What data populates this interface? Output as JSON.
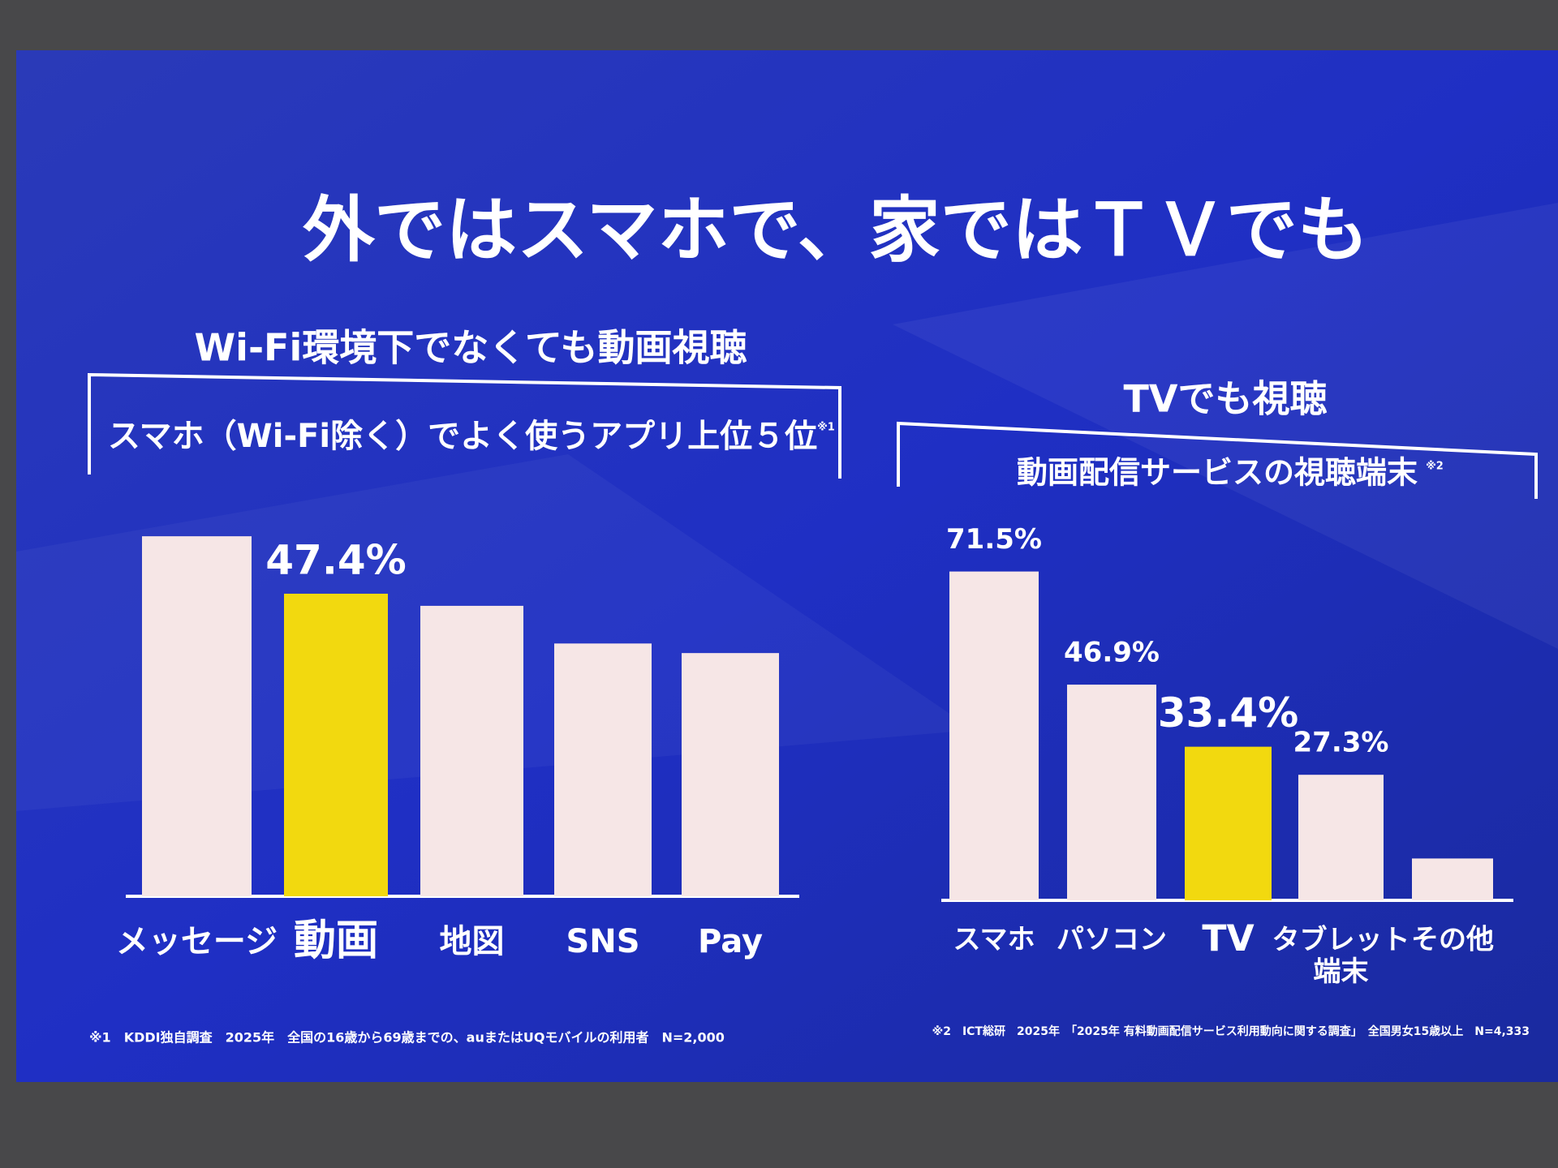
{
  "title": "外ではスマホで、家ではＴＶでも",
  "chart_data": [
    {
      "type": "bar",
      "heading": "Wi-Fi環境下でなくても動画視聴",
      "title": "スマホ（Wi-Fi除く）でよく使うアプリ上位５位",
      "note_mark": "※1",
      "categories": [
        "メッセージ",
        "動画",
        "地図",
        "SNS",
        "Pay"
      ],
      "values": [
        56.4,
        47.4,
        45.5,
        39.6,
        38.1
      ],
      "value_labels": [
        null,
        "47.4%",
        null,
        null,
        null
      ],
      "colors": [
        "#f6e6e6",
        "#f2d90f",
        "#f6e6e6",
        "#f6e6e6",
        "#f6e6e6"
      ],
      "label_colors": [
        "#ffffff",
        "#f2d90f",
        "#ffffff",
        "#ffffff",
        "#ffffff"
      ],
      "footnote": "※1　KDDI独自調査　2025年　全国の16歳から69歳までの、auまたはUQモバイルの利用者　N=2,000"
    },
    {
      "type": "bar",
      "heading": "TVでも視聴",
      "title": "動画配信サービスの視聴端末",
      "note_mark": "※2",
      "categories": [
        "スマホ",
        "パソコン",
        "TV",
        "タブレット\n端末",
        "その他"
      ],
      "values": [
        71.5,
        46.9,
        33.4,
        27.3,
        9.1
      ],
      "value_labels": [
        "71.5%",
        "46.9%",
        "33.4%",
        "27.3%",
        null
      ],
      "colors": [
        "#f6e6e6",
        "#f6e6e6",
        "#f2d90f",
        "#f6e6e6",
        "#f6e6e6"
      ],
      "label_colors": [
        "#ffffff",
        "#ffffff",
        "#f2d90f",
        "#ffffff",
        "#ffffff"
      ],
      "footnote": "※2　ICT総研　2025年　「2025年 有料動画配信サービス利用動向に関する調査」　全国男女15歳以上　N=4,333"
    }
  ]
}
